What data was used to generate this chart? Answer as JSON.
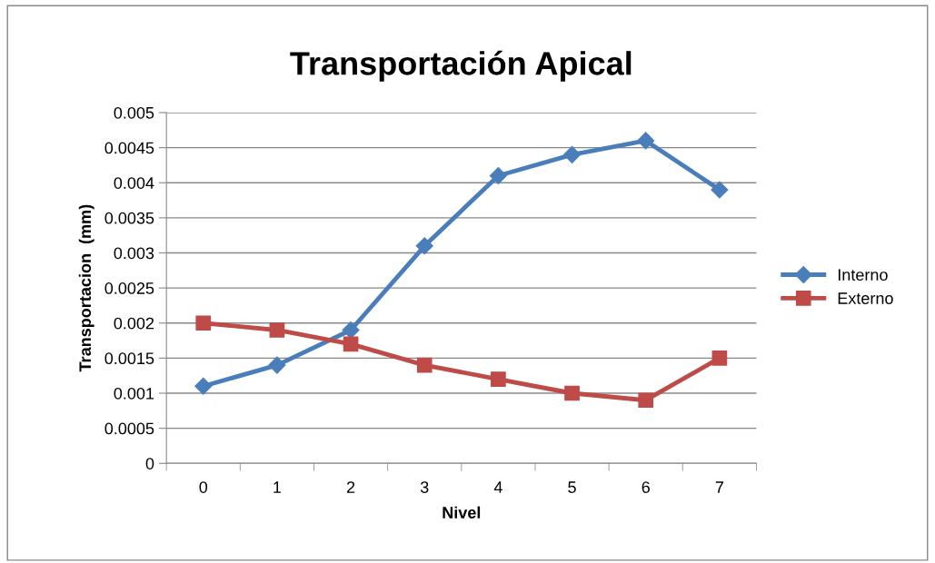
{
  "chart_data": {
    "type": "line",
    "title": "Transportación Apical",
    "xlabel": "Nivel",
    "ylabel": "Transportacion  (mm)",
    "categories": [
      "0",
      "1",
      "2",
      "3",
      "4",
      "5",
      "6",
      "7"
    ],
    "series": [
      {
        "name": "Interno",
        "color": "#4a7ebb",
        "marker": "diamond",
        "values": [
          0.0011,
          0.0014,
          0.0019,
          0.0031,
          0.0041,
          0.0044,
          0.0046,
          0.0039
        ]
      },
      {
        "name": "Externo",
        "color": "#be4b48",
        "marker": "square",
        "values": [
          0.002,
          0.0019,
          0.0017,
          0.0014,
          0.0012,
          0.001,
          0.0009,
          0.0015
        ]
      }
    ],
    "ylim": [
      0,
      0.005
    ],
    "yticks": [
      0,
      0.0005,
      0.001,
      0.0015,
      0.002,
      0.0025,
      0.003,
      0.0035,
      0.004,
      0.0045,
      0.005
    ],
    "grid": "y",
    "legend": "right",
    "line_style": "solid"
  }
}
